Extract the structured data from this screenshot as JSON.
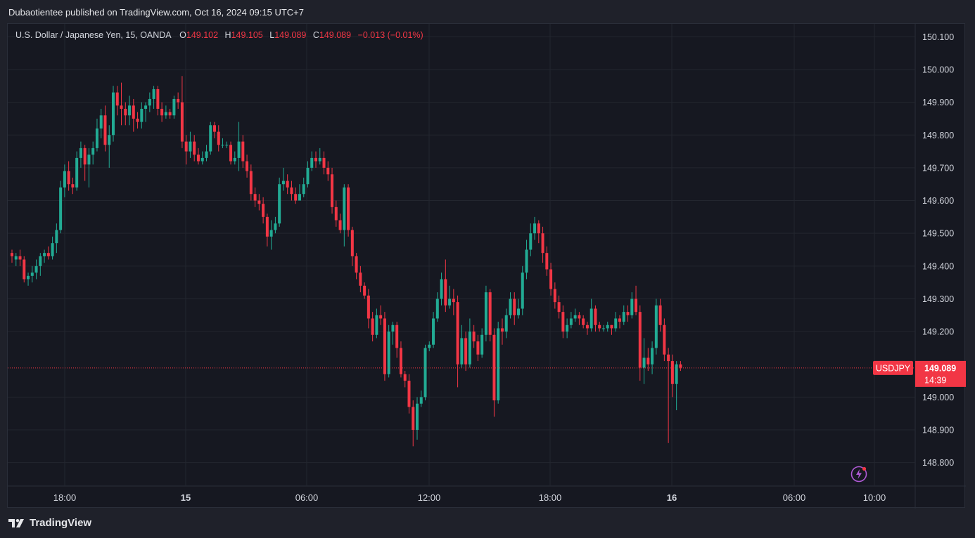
{
  "header": {
    "published": "Dubaotientee published on TradingView.com, Oct 16, 2024 09:15 UTC+7"
  },
  "legend": {
    "symbol": "U.S. Dollar / Japanese Yen, 15, OANDA",
    "open_label": "O",
    "open": "149.102",
    "high_label": "H",
    "high": "149.105",
    "low_label": "L",
    "low": "149.089",
    "close_label": "C",
    "close": "149.089",
    "change": "−0.013 (−0.01%)"
  },
  "price_tag": {
    "symbol": "USDJPY",
    "price": "149.089",
    "countdown": "14:39"
  },
  "footer": {
    "brand": "TradingView"
  },
  "icons": {
    "alert": "lightning-icon",
    "logo": "tradingview-logo-icon"
  },
  "colors": {
    "up": "#22ab94",
    "down": "#f23645",
    "background": "#161821",
    "grid": "#23262f"
  },
  "chart_data": {
    "type": "candlestick",
    "ylim": [
      148.75,
      150.12
    ],
    "y_ticks": [
      "150.100",
      "150.000",
      "149.900",
      "149.800",
      "149.700",
      "149.600",
      "149.500",
      "149.400",
      "149.300",
      "149.200",
      "149.000",
      "148.900",
      "148.800"
    ],
    "x_ticks": [
      {
        "label": "18:00",
        "bold": false
      },
      {
        "label": "15",
        "bold": true
      },
      {
        "label": "06:00",
        "bold": false
      },
      {
        "label": "12:00",
        "bold": false
      },
      {
        "label": "18:00",
        "bold": false
      },
      {
        "label": "16",
        "bold": true
      },
      {
        "label": "06:00",
        "bold": false
      },
      {
        "label": "10:00",
        "bold": false
      }
    ],
    "last_price": 149.089,
    "candles": [
      [
        149.44,
        149.43,
        149.45,
        149.41
      ],
      [
        149.42,
        149.43,
        149.44,
        149.4
      ],
      [
        149.43,
        149.42,
        149.45,
        149.4
      ],
      [
        149.42,
        149.36,
        149.43,
        149.35
      ],
      [
        149.36,
        149.37,
        149.38,
        149.34
      ],
      [
        149.37,
        149.38,
        149.4,
        149.35
      ],
      [
        149.38,
        149.4,
        149.42,
        149.36
      ],
      [
        149.4,
        149.43,
        149.44,
        149.37
      ],
      [
        149.43,
        149.44,
        149.45,
        149.41
      ],
      [
        149.44,
        149.43,
        149.46,
        149.42
      ],
      [
        149.43,
        149.47,
        149.49,
        149.42
      ],
      [
        149.47,
        149.51,
        149.53,
        149.44
      ],
      [
        149.51,
        149.64,
        149.66,
        149.5
      ],
      [
        149.64,
        149.69,
        149.71,
        149.61
      ],
      [
        149.69,
        149.65,
        149.72,
        149.63
      ],
      [
        149.65,
        149.64,
        149.67,
        149.62
      ],
      [
        149.64,
        149.73,
        149.75,
        149.63
      ],
      [
        149.73,
        149.76,
        149.78,
        149.7
      ],
      [
        149.76,
        149.71,
        149.77,
        149.66
      ],
      [
        149.71,
        149.74,
        149.76,
        149.64
      ],
      [
        149.74,
        149.76,
        149.78,
        149.71
      ],
      [
        149.76,
        149.82,
        149.85,
        149.75
      ],
      [
        149.82,
        149.86,
        149.88,
        149.79
      ],
      [
        149.86,
        149.77,
        149.89,
        149.75
      ],
      [
        149.77,
        149.8,
        149.83,
        149.7
      ],
      [
        149.8,
        149.93,
        149.95,
        149.78
      ],
      [
        149.93,
        149.89,
        149.95,
        149.86
      ],
      [
        149.89,
        149.88,
        149.96,
        149.83
      ],
      [
        149.88,
        149.86,
        149.9,
        149.83
      ],
      [
        149.86,
        149.89,
        149.92,
        149.83
      ],
      [
        149.89,
        149.85,
        149.91,
        149.81
      ],
      [
        149.85,
        149.84,
        149.87,
        149.82
      ],
      [
        149.84,
        149.88,
        149.9,
        149.82
      ],
      [
        149.88,
        149.89,
        149.9,
        149.84
      ],
      [
        149.89,
        149.91,
        149.93,
        149.87
      ],
      [
        149.91,
        149.94,
        149.95,
        149.88
      ],
      [
        149.94,
        149.88,
        149.95,
        149.86
      ],
      [
        149.88,
        149.86,
        149.9,
        149.84
      ],
      [
        149.86,
        149.87,
        149.89,
        149.85
      ],
      [
        149.87,
        149.86,
        149.88,
        149.85
      ],
      [
        149.86,
        149.91,
        149.92,
        149.85
      ],
      [
        149.91,
        149.9,
        149.93,
        149.88
      ],
      [
        149.9,
        149.78,
        149.98,
        149.76
      ],
      [
        149.78,
        149.75,
        149.8,
        149.71
      ],
      [
        149.75,
        149.78,
        149.81,
        149.73
      ],
      [
        149.78,
        149.74,
        149.8,
        149.72
      ],
      [
        149.74,
        149.72,
        149.76,
        149.71
      ],
      [
        149.72,
        149.73,
        149.75,
        149.71
      ],
      [
        149.73,
        149.75,
        149.77,
        149.72
      ],
      [
        149.75,
        149.83,
        149.84,
        149.74
      ],
      [
        149.83,
        149.81,
        149.84,
        149.79
      ],
      [
        149.81,
        149.77,
        149.83,
        149.75
      ],
      [
        149.77,
        149.77,
        149.79,
        149.76
      ],
      [
        149.77,
        149.77,
        149.78,
        149.76
      ],
      [
        149.77,
        149.72,
        149.78,
        149.71
      ],
      [
        149.72,
        149.73,
        149.75,
        149.71
      ],
      [
        149.73,
        149.78,
        149.84,
        149.69
      ],
      [
        149.78,
        149.72,
        149.8,
        149.7
      ],
      [
        149.72,
        149.69,
        149.74,
        149.67
      ],
      [
        149.69,
        149.62,
        149.71,
        149.6
      ],
      [
        149.62,
        149.6,
        149.64,
        149.58
      ],
      [
        149.6,
        149.59,
        149.62,
        149.57
      ],
      [
        149.59,
        149.55,
        149.61,
        149.53
      ],
      [
        149.55,
        149.49,
        149.56,
        149.46
      ],
      [
        149.49,
        149.51,
        149.54,
        149.45
      ],
      [
        149.51,
        149.53,
        149.55,
        149.5
      ],
      [
        149.53,
        149.65,
        149.67,
        149.52
      ],
      [
        149.65,
        149.66,
        149.7,
        149.63
      ],
      [
        149.66,
        149.64,
        149.68,
        149.62
      ],
      [
        149.64,
        149.62,
        149.66,
        149.6
      ],
      [
        149.62,
        149.6,
        149.64,
        149.59
      ],
      [
        149.6,
        149.62,
        149.65,
        149.61
      ],
      [
        149.62,
        149.65,
        149.67,
        149.61
      ],
      [
        149.65,
        149.7,
        149.72,
        149.64
      ],
      [
        149.7,
        149.73,
        149.75,
        149.69
      ],
      [
        149.73,
        149.72,
        149.75,
        149.7
      ],
      [
        149.72,
        149.73,
        149.76,
        149.71
      ],
      [
        149.73,
        149.7,
        149.75,
        149.68
      ],
      [
        149.7,
        149.68,
        149.72,
        149.66
      ],
      [
        149.68,
        149.58,
        149.7,
        149.56
      ],
      [
        149.58,
        149.54,
        149.6,
        149.52
      ],
      [
        149.54,
        149.51,
        149.56,
        149.5
      ],
      [
        149.51,
        149.64,
        149.65,
        149.46
      ],
      [
        149.64,
        149.51,
        149.65,
        149.49
      ],
      [
        149.51,
        149.43,
        149.52,
        149.4
      ],
      [
        149.43,
        149.38,
        149.44,
        149.36
      ],
      [
        149.38,
        149.34,
        149.4,
        149.32
      ],
      [
        149.34,
        149.31,
        149.35,
        149.3
      ],
      [
        149.31,
        149.24,
        149.33,
        149.21
      ],
      [
        149.24,
        149.19,
        149.26,
        149.17
      ],
      [
        149.19,
        149.25,
        149.27,
        149.18
      ],
      [
        149.25,
        149.24,
        149.28,
        149.22
      ],
      [
        149.24,
        149.07,
        149.26,
        149.05
      ],
      [
        149.07,
        149.2,
        149.22,
        149.06
      ],
      [
        149.2,
        149.22,
        149.23,
        149.16
      ],
      [
        149.22,
        149.15,
        149.23,
        149.12
      ],
      [
        149.15,
        149.07,
        149.17,
        149.06
      ],
      [
        149.07,
        149.05,
        149.08,
        149.03
      ],
      [
        149.05,
        148.97,
        149.07,
        148.95
      ],
      [
        148.97,
        148.9,
        148.99,
        148.85
      ],
      [
        148.9,
        148.98,
        149.0,
        148.87
      ],
      [
        148.98,
        149.0,
        149.02,
        148.97
      ],
      [
        149.0,
        149.15,
        149.16,
        148.99
      ],
      [
        149.15,
        149.16,
        149.17,
        149.14
      ],
      [
        149.16,
        149.24,
        149.26,
        149.15
      ],
      [
        149.24,
        149.3,
        149.32,
        149.23
      ],
      [
        149.3,
        149.36,
        149.38,
        149.28
      ],
      [
        149.36,
        149.28,
        149.42,
        149.26
      ],
      [
        149.28,
        149.3,
        149.34,
        149.27
      ],
      [
        149.3,
        149.29,
        149.33,
        149.25
      ],
      [
        149.29,
        149.1,
        149.31,
        149.03
      ],
      [
        149.1,
        149.18,
        149.22,
        149.09
      ],
      [
        149.18,
        149.1,
        149.2,
        149.08
      ],
      [
        149.1,
        149.2,
        149.24,
        149.09
      ],
      [
        149.2,
        149.17,
        149.22,
        149.15
      ],
      [
        149.17,
        149.13,
        149.19,
        149.11
      ],
      [
        149.13,
        149.19,
        149.21,
        149.12
      ],
      [
        149.19,
        149.32,
        149.34,
        149.17
      ],
      [
        149.32,
        149.19,
        149.33,
        149.17
      ],
      [
        149.19,
        148.99,
        149.21,
        148.94
      ],
      [
        148.99,
        149.21,
        149.23,
        148.98
      ],
      [
        149.21,
        149.2,
        149.24,
        149.16
      ],
      [
        149.2,
        149.25,
        149.27,
        149.18
      ],
      [
        149.25,
        149.3,
        149.32,
        149.24
      ],
      [
        149.3,
        149.25,
        149.32,
        149.22
      ],
      [
        149.25,
        149.27,
        149.3,
        149.24
      ],
      [
        149.27,
        149.38,
        149.4,
        149.25
      ],
      [
        149.38,
        149.45,
        149.48,
        149.36
      ],
      [
        149.45,
        149.5,
        149.53,
        149.43
      ],
      [
        149.5,
        149.53,
        149.55,
        149.48
      ],
      [
        149.53,
        149.5,
        149.54,
        149.47
      ],
      [
        149.5,
        149.44,
        149.52,
        149.41
      ],
      [
        149.44,
        149.39,
        149.46,
        149.37
      ],
      [
        149.39,
        149.33,
        149.41,
        149.31
      ],
      [
        149.33,
        149.29,
        149.35,
        149.27
      ],
      [
        149.29,
        149.26,
        149.31,
        149.24
      ],
      [
        149.26,
        149.2,
        149.28,
        149.18
      ],
      [
        149.2,
        149.22,
        149.24,
        149.18
      ],
      [
        149.22,
        149.24,
        149.26,
        149.21
      ],
      [
        149.24,
        149.25,
        149.27,
        149.23
      ],
      [
        149.25,
        149.24,
        149.26,
        149.22
      ],
      [
        149.24,
        149.22,
        149.25,
        149.21
      ],
      [
        149.22,
        149.21,
        149.23,
        149.19
      ],
      [
        149.21,
        149.27,
        149.3,
        149.2
      ],
      [
        149.27,
        149.22,
        149.28,
        149.2
      ],
      [
        149.22,
        149.21,
        149.23,
        149.2
      ],
      [
        149.21,
        149.21,
        149.22,
        149.2
      ],
      [
        149.21,
        149.22,
        149.23,
        149.2
      ],
      [
        149.22,
        149.21,
        149.22,
        149.19
      ],
      [
        149.21,
        149.24,
        149.26,
        149.2
      ],
      [
        149.24,
        149.23,
        149.25,
        149.21
      ],
      [
        149.23,
        149.26,
        149.28,
        149.22
      ],
      [
        149.26,
        149.25,
        149.28,
        149.23
      ],
      [
        149.25,
        149.3,
        149.32,
        149.24
      ],
      [
        149.3,
        149.26,
        149.34,
        149.25
      ],
      [
        149.26,
        149.09,
        149.28,
        149.05
      ],
      [
        149.09,
        149.12,
        149.18,
        149.04
      ],
      [
        149.12,
        149.1,
        149.15,
        149.08
      ],
      [
        149.1,
        149.15,
        149.17,
        149.07
      ],
      [
        149.15,
        149.28,
        149.3,
        149.13
      ],
      [
        149.28,
        149.22,
        149.3,
        149.2
      ],
      [
        149.22,
        149.13,
        149.24,
        149.11
      ],
      [
        149.13,
        149.11,
        149.15,
        148.86
      ],
      [
        149.11,
        149.04,
        149.13,
        149.0
      ],
      [
        149.04,
        149.1,
        149.11,
        148.96
      ],
      [
        149.1,
        149.09,
        149.11,
        149.08
      ]
    ]
  }
}
